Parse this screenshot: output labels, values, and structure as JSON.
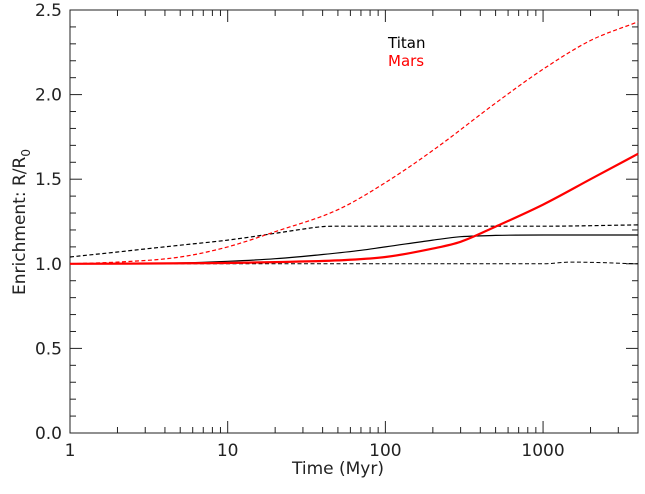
{
  "chart_data": {
    "type": "line",
    "xlabel": "Time (Myr)",
    "ylabel_main": "Enrichment: R/R",
    "ylabel_sub": "0",
    "xscale": "log",
    "xlim": [
      1,
      4000
    ],
    "ylim": [
      0,
      2.5
    ],
    "x_ticks": [
      1,
      10,
      100,
      1000
    ],
    "x_tick_labels": [
      "1",
      "10",
      "100",
      "1000"
    ],
    "y_ticks": [
      0.0,
      0.5,
      1.0,
      1.5,
      2.0,
      2.5
    ],
    "y_tick_labels": [
      "0.0",
      "0.5",
      "1.0",
      "1.5",
      "2.0",
      "2.5"
    ],
    "grid": false,
    "legend": {
      "placement": "top-center",
      "entries": [
        {
          "label": "Titan",
          "color": "#000000"
        },
        {
          "label": "Mars",
          "color": "#ff0000"
        }
      ]
    },
    "series": [
      {
        "color": "#000000",
        "style": "solid",
        "width": 1.2,
        "x": [
          1,
          5,
          10,
          20,
          40,
          70,
          100,
          200,
          300,
          400,
          500,
          1000,
          2000,
          4000
        ],
        "y": [
          1.0,
          1.005,
          1.015,
          1.03,
          1.055,
          1.08,
          1.1,
          1.14,
          1.16,
          1.165,
          1.168,
          1.17,
          1.17,
          1.17
        ]
      },
      {
        "color": "#000000",
        "style": "dashed",
        "width": 1.2,
        "x": [
          1,
          2,
          5,
          10,
          20,
          30,
          40,
          50,
          100,
          1000,
          4000
        ],
        "y": [
          1.04,
          1.07,
          1.11,
          1.14,
          1.18,
          1.205,
          1.22,
          1.222,
          1.222,
          1.222,
          1.23
        ]
      },
      {
        "color": "#000000",
        "style": "dashed",
        "width": 1.0,
        "x": [
          1,
          10,
          100,
          1000,
          1500,
          4000
        ],
        "y": [
          1.0,
          1.0,
          1.0,
          1.0,
          1.01,
          1.0
        ]
      },
      {
        "color": "#ff0000",
        "style": "solid",
        "width": 2.2,
        "x": [
          1,
          10,
          20,
          50,
          100,
          200,
          300,
          500,
          1000,
          2000,
          4000
        ],
        "y": [
          1.0,
          1.005,
          1.01,
          1.02,
          1.04,
          1.09,
          1.13,
          1.22,
          1.35,
          1.5,
          1.65
        ]
      },
      {
        "color": "#ff0000",
        "style": "dashed",
        "width": 1.2,
        "x": [
          1,
          2,
          5,
          10,
          20,
          50,
          100,
          200,
          500,
          1000,
          2000,
          4000
        ],
        "y": [
          1.0,
          1.01,
          1.04,
          1.1,
          1.19,
          1.32,
          1.48,
          1.67,
          1.95,
          2.15,
          2.32,
          2.43
        ]
      }
    ]
  }
}
